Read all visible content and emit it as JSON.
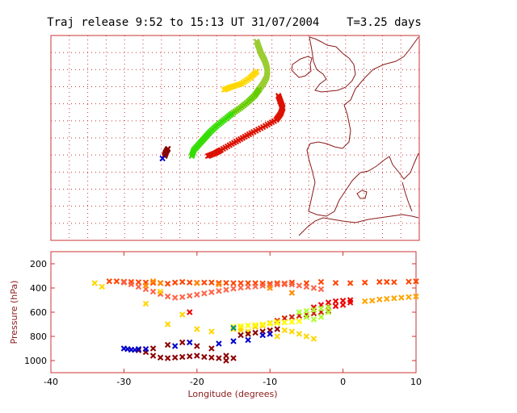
{
  "title": "Traj release 9:52 to 15:13 UT 31/07/2004    T=3.25 days",
  "colors": {
    "frame": "#cc3333",
    "grid": "#cc3333",
    "coast": "#8b1a1a",
    "axis_label": "#8b1a1a"
  },
  "chart_data": [
    {
      "type": "scatter",
      "panel": "map",
      "grid": true,
      "axis_labels_shown": false,
      "series": [
        {
          "color": "#9acd32",
          "points": [
            [
              -3.0,
              67.0
            ],
            [
              -2.8,
              66.0
            ],
            [
              -2.6,
              65.0
            ],
            [
              -2.3,
              64.0
            ],
            [
              -2.1,
              63.0
            ],
            [
              -2.0,
              62.0
            ],
            [
              -2.1,
              61.0
            ],
            [
              -2.4,
              60.0
            ],
            [
              -2.8,
              59.0
            ]
          ]
        },
        {
          "color": "#66cc00",
          "points": [
            [
              -2.8,
              59.0
            ],
            [
              -3.2,
              58.0
            ],
            [
              -3.8,
              57.0
            ],
            [
              -4.5,
              56.0
            ],
            [
              -5.3,
              55.0
            ]
          ]
        },
        {
          "color": "#33dd00",
          "points": [
            [
              -5.3,
              55.0
            ],
            [
              -6.0,
              54.0
            ],
            [
              -6.7,
              53.0
            ],
            [
              -7.3,
              52.0
            ],
            [
              -7.8,
              51.0
            ],
            [
              -8.3,
              50.0
            ],
            [
              -8.8,
              49.0
            ],
            [
              -9.0,
              48.0
            ]
          ]
        },
        {
          "color": "#ffd700",
          "points": [
            [
              -3.0,
              62.0
            ],
            [
              -3.6,
              61.0
            ],
            [
              -4.4,
              60.0
            ],
            [
              -5.3,
              59.5
            ],
            [
              -6.0,
              59.0
            ]
          ]
        },
        {
          "color": "#dd1100",
          "points": [
            [
              -1.0,
              58.0
            ],
            [
              -0.8,
              57.0
            ],
            [
              -0.6,
              56.0
            ],
            [
              -0.8,
              55.0
            ],
            [
              -1.2,
              54.0
            ],
            [
              -2.2,
              53.0
            ],
            [
              -3.3,
              52.0
            ],
            [
              -4.3,
              51.0
            ],
            [
              -5.3,
              50.0
            ],
            [
              -6.3,
              49.0
            ],
            [
              -6.8,
              48.5
            ],
            [
              -7.5,
              48.0
            ]
          ]
        },
        {
          "color": "#8b0000",
          "points": [
            [
              -11.2,
              49.2
            ],
            [
              -11.4,
              48.6
            ],
            [
              -11.5,
              48.0
            ]
          ]
        },
        {
          "color": "#0000cc",
          "points": [
            [
              -11.7,
              47.6
            ]
          ]
        }
      ]
    },
    {
      "type": "scatter",
      "panel": "pressure",
      "xlabel": "Longitude  (degrees)",
      "ylabel": "Pressure  (hPa)",
      "xlim": [
        -40,
        10
      ],
      "ylim": [
        1100,
        100
      ],
      "xticks": [
        "-40",
        "-30",
        "-20",
        "-10",
        "0",
        "10"
      ],
      "yticks": [
        "200",
        "400",
        "600",
        "800",
        "1000"
      ],
      "grid": false,
      "series": [
        {
          "color": "#ff4500",
          "points": [
            [
              -32,
              345
            ],
            [
              -31,
              345
            ],
            [
              -30,
              348
            ],
            [
              -29,
              350
            ],
            [
              -28,
              352
            ],
            [
              -27,
              355
            ],
            [
              -26,
              358
            ],
            [
              -25,
              360
            ],
            [
              -24,
              365
            ],
            [
              -23,
              355
            ],
            [
              -22,
              350
            ],
            [
              -21,
              355
            ],
            [
              -20,
              357
            ],
            [
              -19,
              355
            ],
            [
              -18,
              355
            ],
            [
              -17,
              358
            ],
            [
              -16,
              358
            ],
            [
              -15,
              360
            ],
            [
              -14,
              360
            ],
            [
              -13,
              360
            ],
            [
              -12,
              360
            ],
            [
              -11,
              362
            ],
            [
              -10,
              365
            ],
            [
              -9,
              360
            ],
            [
              -8,
              362
            ],
            [
              -7,
              355
            ],
            [
              -5,
              360
            ],
            [
              -3,
              350
            ],
            [
              -1,
              358
            ],
            [
              1,
              360
            ],
            [
              3,
              355
            ],
            [
              5,
              350
            ],
            [
              6,
              350
            ],
            [
              7,
              352
            ],
            [
              9,
              348
            ],
            [
              10,
              345
            ]
          ]
        },
        {
          "color": "#ff6347",
          "points": [
            [
              -30,
              355
            ],
            [
              -29,
              370
            ],
            [
              -28,
              390
            ],
            [
              -27,
              410
            ],
            [
              -26,
              430
            ],
            [
              -25,
              450
            ],
            [
              -24,
              470
            ],
            [
              -23,
              480
            ],
            [
              -22,
              475
            ],
            [
              -21,
              465
            ],
            [
              -20,
              455
            ],
            [
              -19,
              445
            ],
            [
              -18,
              435
            ],
            [
              -17,
              425
            ],
            [
              -16,
              415
            ],
            [
              -15,
              405
            ],
            [
              -14,
              398
            ],
            [
              -13,
              392
            ],
            [
              -12,
              388
            ],
            [
              -11,
              382
            ],
            [
              -10,
              378
            ],
            [
              -9,
              372
            ],
            [
              -8,
              370
            ],
            [
              -7,
              372
            ],
            [
              -6,
              380
            ],
            [
              -5,
              390
            ],
            [
              -4,
              400
            ],
            [
              -3,
              410
            ]
          ]
        },
        {
          "color": "#ff8c00",
          "points": [
            [
              -26,
              345
            ],
            [
              -25,
              358
            ],
            [
              -27,
              380
            ],
            [
              -20,
              360
            ],
            [
              -17,
              370
            ],
            [
              -10,
              400
            ],
            [
              -7,
              440
            ]
          ]
        },
        {
          "color": "#ffa500",
          "points": [
            [
              3,
              510
            ],
            [
              4,
              505
            ],
            [
              5,
              495
            ],
            [
              6,
              490
            ],
            [
              7,
              485
            ],
            [
              8,
              480
            ],
            [
              9,
              475
            ],
            [
              10,
              470
            ]
          ]
        },
        {
          "color": "#ee0000",
          "points": [
            [
              -21,
              600
            ],
            [
              -4,
              560
            ],
            [
              -3,
              540
            ],
            [
              -2,
              520
            ],
            [
              -1,
              510
            ],
            [
              0,
              505
            ],
            [
              1,
              500
            ],
            [
              1,
              520
            ],
            [
              0,
              540
            ],
            [
              -1,
              550
            ],
            [
              -2,
              555
            ]
          ]
        },
        {
          "color": "#cc2200",
          "points": [
            [
              -12,
              720
            ],
            [
              -11,
              710
            ],
            [
              -10,
              690
            ],
            [
              -9,
              670
            ],
            [
              -8,
              650
            ],
            [
              -7,
              640
            ],
            [
              -6,
              630
            ],
            [
              -5,
              620
            ],
            [
              -4,
              610
            ],
            [
              -3,
              600
            ],
            [
              -2,
              590
            ]
          ]
        },
        {
          "color": "#adff2f",
          "points": [
            [
              -6,
              600
            ],
            [
              -5,
              590
            ],
            [
              -4,
              580
            ],
            [
              -3,
              570
            ],
            [
              -2,
              560
            ],
            [
              -2,
              600
            ],
            [
              -3,
              640
            ],
            [
              -4,
              660
            ],
            [
              -5,
              640
            ]
          ]
        },
        {
          "color": "#ffd700",
          "points": [
            [
              -34,
              360
            ],
            [
              -33,
              390
            ],
            [
              -25,
              430
            ],
            [
              -27,
              530
            ],
            [
              -22,
              620
            ],
            [
              -24,
              700
            ],
            [
              -20,
              740
            ],
            [
              -18,
              760
            ],
            [
              -15,
              740
            ],
            [
              -14,
              730
            ],
            [
              -12,
              720
            ],
            [
              -11,
              710
            ],
            [
              -10,
              690
            ],
            [
              -9,
              680
            ],
            [
              -8,
              750
            ],
            [
              -7,
              760
            ],
            [
              -6,
              780
            ],
            [
              -5,
              800
            ],
            [
              -4,
              820
            ],
            [
              -9,
              800
            ],
            [
              -13,
              760
            ],
            [
              -14,
              750
            ]
          ]
        },
        {
          "color": "#ffff00",
          "points": [
            [
              -15,
              720
            ],
            [
              -14,
              715
            ],
            [
              -13,
              710
            ],
            [
              -12,
              705
            ],
            [
              -11,
              700
            ],
            [
              -10,
              695
            ],
            [
              -9,
              690
            ],
            [
              -8,
              685
            ],
            [
              -7,
              680
            ],
            [
              -6,
              675
            ]
          ]
        },
        {
          "color": "#8b0000",
          "points": [
            [
              -29,
              910
            ],
            [
              -28,
              915
            ],
            [
              -27,
              930
            ],
            [
              -26,
              960
            ],
            [
              -25,
              975
            ],
            [
              -24,
              980
            ],
            [
              -23,
              975
            ],
            [
              -22,
              970
            ],
            [
              -21,
              965
            ],
            [
              -20,
              960
            ],
            [
              -19,
              970
            ],
            [
              -18,
              975
            ],
            [
              -17,
              980
            ],
            [
              -16,
              960
            ],
            [
              -16,
              1000
            ],
            [
              -15,
              980
            ],
            [
              -20,
              880
            ],
            [
              -22,
              850
            ],
            [
              -24,
              870
            ],
            [
              -26,
              900
            ],
            [
              -18,
              900
            ],
            [
              -14,
              790
            ],
            [
              -13,
              780
            ],
            [
              -12,
              770
            ],
            [
              -11,
              760
            ],
            [
              -10,
              750
            ],
            [
              -9,
              740
            ]
          ]
        },
        {
          "color": "#0000cc",
          "points": [
            [
              -30,
              900
            ],
            [
              -29.5,
              905
            ],
            [
              -29,
              910
            ],
            [
              -28.5,
              912
            ],
            [
              -28,
              905
            ],
            [
              -27,
              905
            ],
            [
              -23,
              880
            ],
            [
              -21,
              850
            ],
            [
              -17,
              860
            ],
            [
              -15,
              840
            ],
            [
              -13,
              830
            ],
            [
              -11,
              790
            ],
            [
              -10,
              780
            ]
          ]
        },
        {
          "color": "#008b8b",
          "points": [
            [
              -15,
              730
            ]
          ]
        }
      ]
    }
  ]
}
